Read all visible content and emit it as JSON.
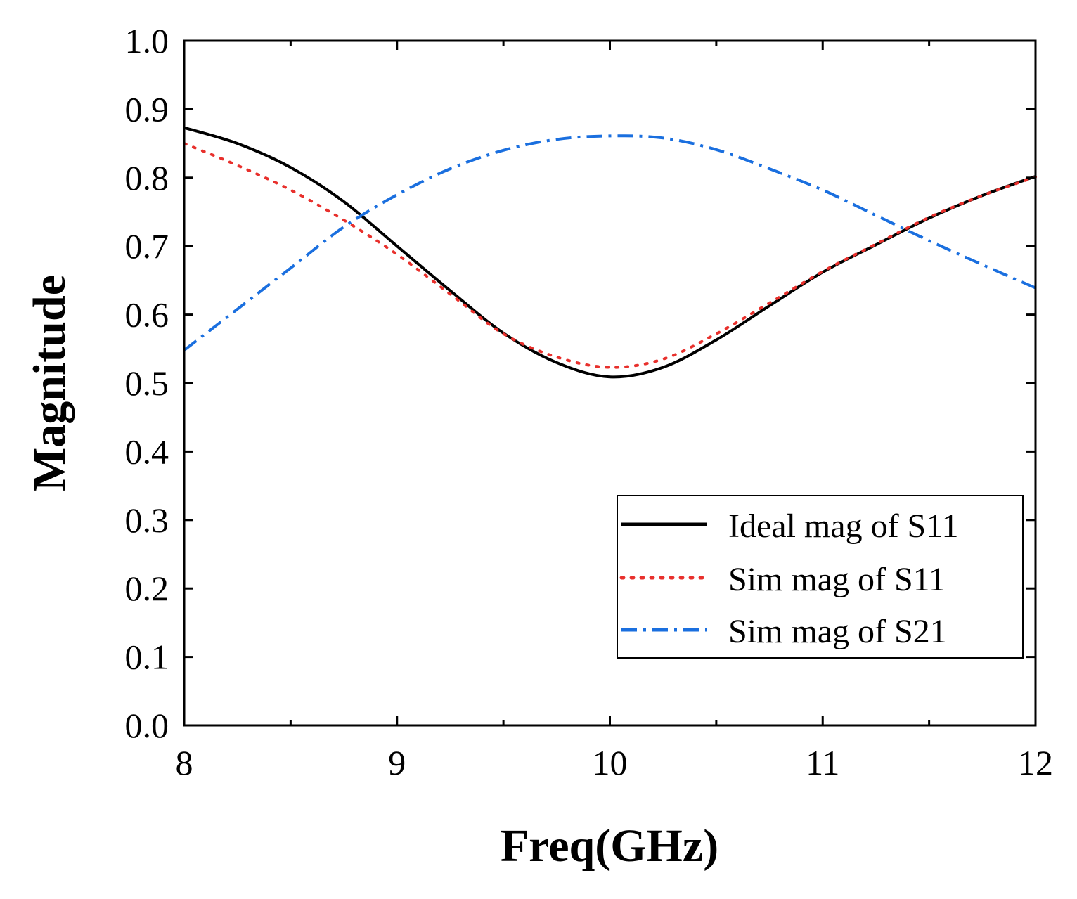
{
  "chart_data": {
    "type": "line",
    "title": "",
    "xlabel": "Freq(GHz)",
    "ylabel": "Magnitude",
    "xlim": [
      8,
      12
    ],
    "ylim": [
      0.0,
      1.0
    ],
    "xticks": [
      8,
      9,
      10,
      11,
      12
    ],
    "xtick_labels": [
      "8",
      "9",
      "10",
      "11",
      "12"
    ],
    "yticks": [
      0.0,
      0.1,
      0.2,
      0.3,
      0.4,
      0.5,
      0.6,
      0.7,
      0.8,
      0.9,
      1.0
    ],
    "ytick_labels": [
      "0.0",
      "0.1",
      "0.2",
      "0.3",
      "0.4",
      "0.5",
      "0.6",
      "0.7",
      "0.8",
      "0.9",
      "1.0"
    ],
    "grid": false,
    "legend_position": "lower-right",
    "x": [
      8.0,
      8.25,
      8.5,
      8.75,
      9.0,
      9.25,
      9.5,
      9.75,
      10.0,
      10.25,
      10.5,
      10.75,
      11.0,
      11.25,
      11.5,
      11.75,
      12.0
    ],
    "series": [
      {
        "name": "Ideal mag of S11",
        "style": "solid",
        "color": "#000000",
        "values": [
          0.873,
          0.85,
          0.815,
          0.765,
          0.7,
          0.635,
          0.573,
          0.53,
          0.509,
          0.523,
          0.563,
          0.613,
          0.662,
          0.702,
          0.741,
          0.774,
          0.802
        ]
      },
      {
        "name": "Sim mag of S11",
        "style": "dotted",
        "color": "#e8302c",
        "values": [
          0.85,
          0.818,
          0.782,
          0.738,
          0.688,
          0.63,
          0.572,
          0.538,
          0.523,
          0.535,
          0.572,
          0.617,
          0.663,
          0.703,
          0.742,
          0.774,
          0.801
        ]
      },
      {
        "name": "Sim mag of S21",
        "style": "dashdot",
        "color": "#1a6fdf",
        "values": [
          0.548,
          0.608,
          0.668,
          0.728,
          0.775,
          0.813,
          0.84,
          0.856,
          0.861,
          0.858,
          0.841,
          0.813,
          0.782,
          0.745,
          0.708,
          0.673,
          0.639
        ]
      }
    ]
  }
}
